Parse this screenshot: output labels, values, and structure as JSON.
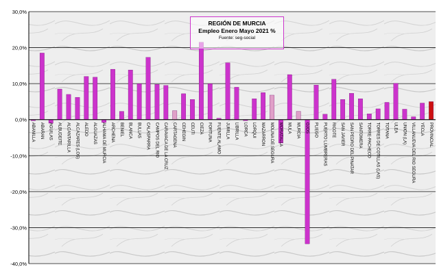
{
  "chart_data": {
    "type": "bar",
    "title": "REGIÓN DE MURCIA",
    "subtitle": "Empleo Enero Mayo 2021 %",
    "source": "Fuente: seg-social",
    "ylim": [
      -40,
      30
    ],
    "yticks": [
      "-40,0%",
      "-30,0%",
      "-20,0%",
      "-10,0%",
      "0,0%",
      "10,0%",
      "20,0%",
      "30,0%"
    ],
    "grid": true,
    "legend": "none",
    "categories": [
      "ABANILLA",
      "ABARAN",
      "AGUILAS",
      "ALBUDEITE",
      "ALCANTARILLA",
      "ALCAZARES (LOS)",
      "ALEDO",
      "ALGUAZAS",
      "ALHAMA DE MURCIA",
      "ARCHENA",
      "BENIEL",
      "BLANCA",
      "BULLAS",
      "CALASPARRA",
      "CAMPOS DEL RIO",
      "CARAVACA DE LA CRUZ",
      "CARTAGENA",
      "CEHEGIN",
      "CEUTI",
      "CIEZA",
      "FORTUNA",
      "FUENTE ALAMO",
      "JUMILLA",
      "LIBRILLA",
      "LORCA",
      "LORQUI",
      "MAZARRON",
      "MOLINA DE SEGURA",
      "MORATALLA",
      "MULA",
      "MURCIA",
      "OJOS",
      "PLIEGO",
      "PUERTO LUMBRERAS",
      "RICOTE",
      "SAN JAVIER",
      "SAN PEDRO DEL PINATAR",
      "SANTOMERA",
      "TORRE-PACHECO",
      "TORRES DE COTILLAS (LAS)",
      "TOTANA",
      "ULEA",
      "UNION (LA)",
      "VILLANUEVA DEL RIO SEGURA",
      "YECLA",
      "PROVINCIAL"
    ],
    "values": [
      -0.3,
      18.5,
      -1.0,
      8.5,
      7.0,
      6.2,
      12.0,
      11.8,
      -0.8,
      14.0,
      2.3,
      13.8,
      10.0,
      17.3,
      9.8,
      9.5,
      2.5,
      7.2,
      5.6,
      21.5,
      10.0,
      0.4,
      15.8,
      9.0,
      -0.3,
      5.8,
      7.5,
      6.8,
      -6.5,
      12.5,
      2.3,
      -34.5,
      9.6,
      1.5,
      11.2,
      5.6,
      7.3,
      5.8,
      1.6,
      3.0,
      4.8,
      10.1,
      2.9,
      0.8,
      4.6,
      5.0
    ],
    "colors": {
      "bar": "#cc33cc",
      "bar_light": "#e0a0c8",
      "bar_white": "#f0e8f0",
      "provincial": "#cc1111",
      "grid": "#111111",
      "axis": "#000000"
    },
    "light_bars": [
      "CARTAGENA",
      "MOLINA DE SEGURA",
      "MURCIA"
    ]
  }
}
